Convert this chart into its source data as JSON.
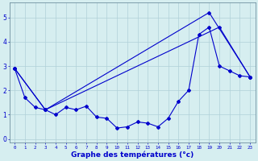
{
  "xlabel": "Graphe des températures (°c)",
  "background_color": "#d6eef0",
  "line_color": "#0000cc",
  "x_ticks": [
    0,
    1,
    2,
    3,
    4,
    5,
    6,
    7,
    8,
    9,
    10,
    11,
    12,
    13,
    14,
    15,
    16,
    17,
    18,
    19,
    20,
    21,
    22,
    23
  ],
  "ylim": [
    -0.15,
    5.6
  ],
  "xlim": [
    -0.5,
    23.5
  ],
  "series1_x": [
    0,
    1,
    2,
    3,
    4,
    5,
    6,
    7,
    8,
    9,
    10,
    11,
    12,
    13,
    14,
    15,
    16,
    17,
    18,
    19,
    20,
    21,
    22,
    23
  ],
  "series1_y": [
    2.9,
    1.7,
    1.3,
    1.2,
    1.0,
    1.3,
    1.2,
    1.35,
    0.9,
    0.85,
    0.45,
    0.5,
    0.7,
    0.65,
    0.5,
    0.85,
    1.55,
    2.0,
    4.3,
    4.6,
    3.0,
    2.8,
    2.6,
    2.55
  ],
  "series2_x": [
    0,
    3,
    19,
    23
  ],
  "series2_y": [
    2.9,
    1.2,
    5.2,
    2.55
  ],
  "series3_x": [
    0,
    3,
    20,
    23
  ],
  "series3_y": [
    2.9,
    1.2,
    4.6,
    2.55
  ],
  "yticks": [
    0,
    1,
    2,
    3,
    4,
    5
  ],
  "grid_color": "#b0d0d8"
}
